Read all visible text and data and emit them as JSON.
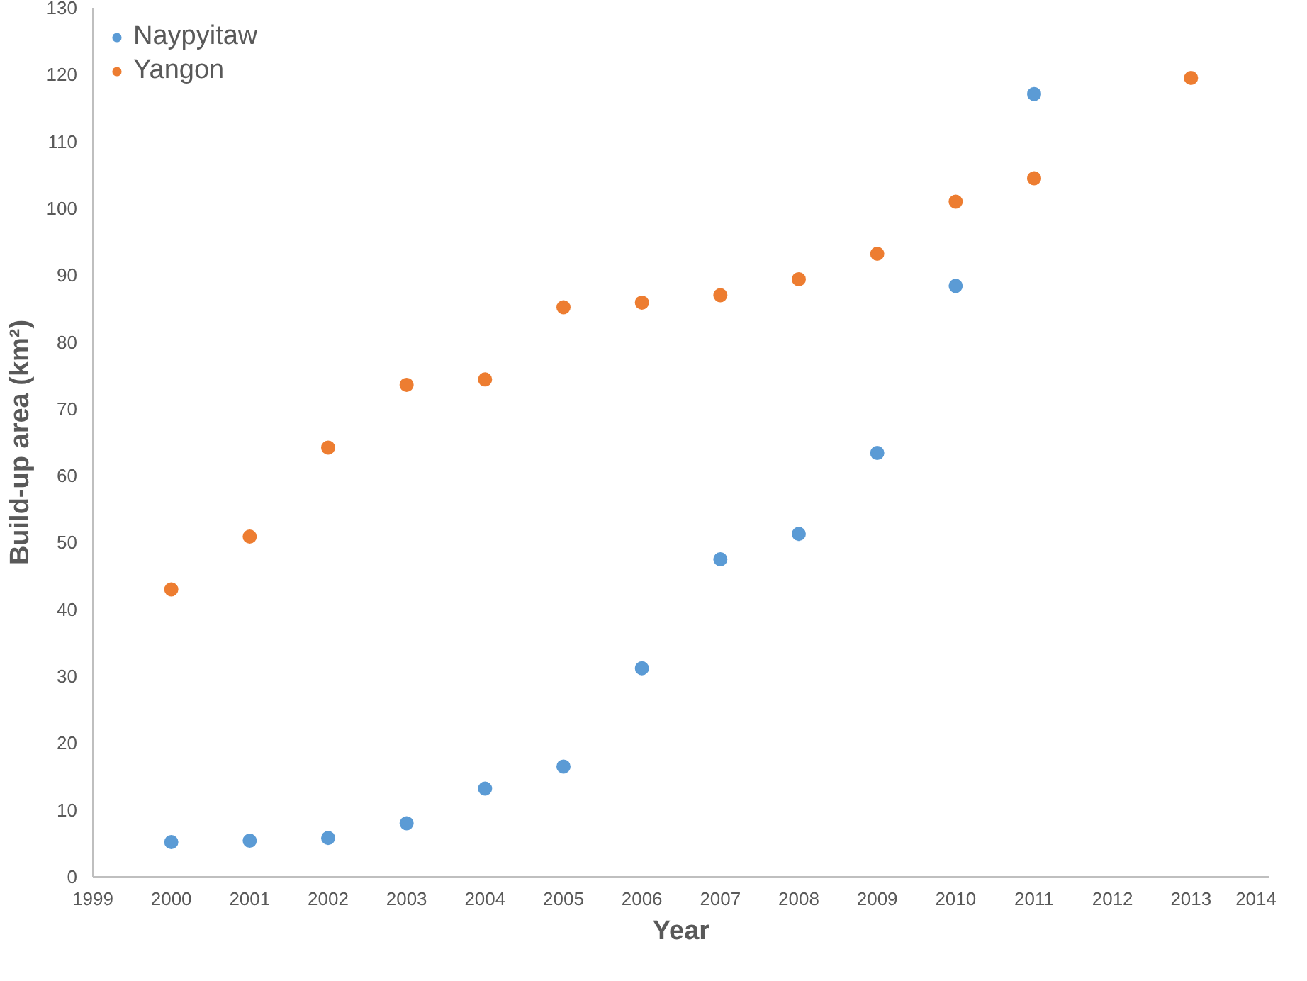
{
  "chart_data": {
    "type": "scatter",
    "xlabel": "Year",
    "ylabel": "Build-up area (km²)",
    "xlim": [
      1999,
      2014
    ],
    "xticks": [
      1999,
      2000,
      2001,
      2002,
      2003,
      2004,
      2005,
      2006,
      2007,
      2008,
      2009,
      2010,
      2011,
      2012,
      2013,
      2014
    ],
    "ylim": [
      0,
      130
    ],
    "yticks": [
      0,
      10,
      20,
      30,
      40,
      50,
      60,
      70,
      80,
      90,
      100,
      110,
      120,
      130
    ],
    "grid": false,
    "legend": "top left",
    "marker": "circle",
    "series": [
      {
        "name": "Naypyitaw",
        "color": "#5b9bd5",
        "x": [
          2000,
          2001,
          2002,
          2003,
          2004,
          2005,
          2006,
          2007,
          2008,
          2009,
          2010,
          2011
        ],
        "values": [
          5.2,
          5.4,
          5.8,
          8.0,
          13.2,
          16.5,
          31.2,
          47.5,
          51.3,
          63.4,
          88.4,
          117.1
        ]
      },
      {
        "name": "Yangon",
        "color": "#ed7d31",
        "x": [
          2000,
          2001,
          2002,
          2003,
          2004,
          2005,
          2006,
          2007,
          2008,
          2009,
          2010,
          2011,
          2013
        ],
        "values": [
          43.0,
          50.9,
          64.2,
          73.6,
          74.4,
          85.2,
          85.9,
          87.0,
          89.4,
          93.2,
          101.0,
          104.5,
          119.5
        ]
      }
    ]
  }
}
